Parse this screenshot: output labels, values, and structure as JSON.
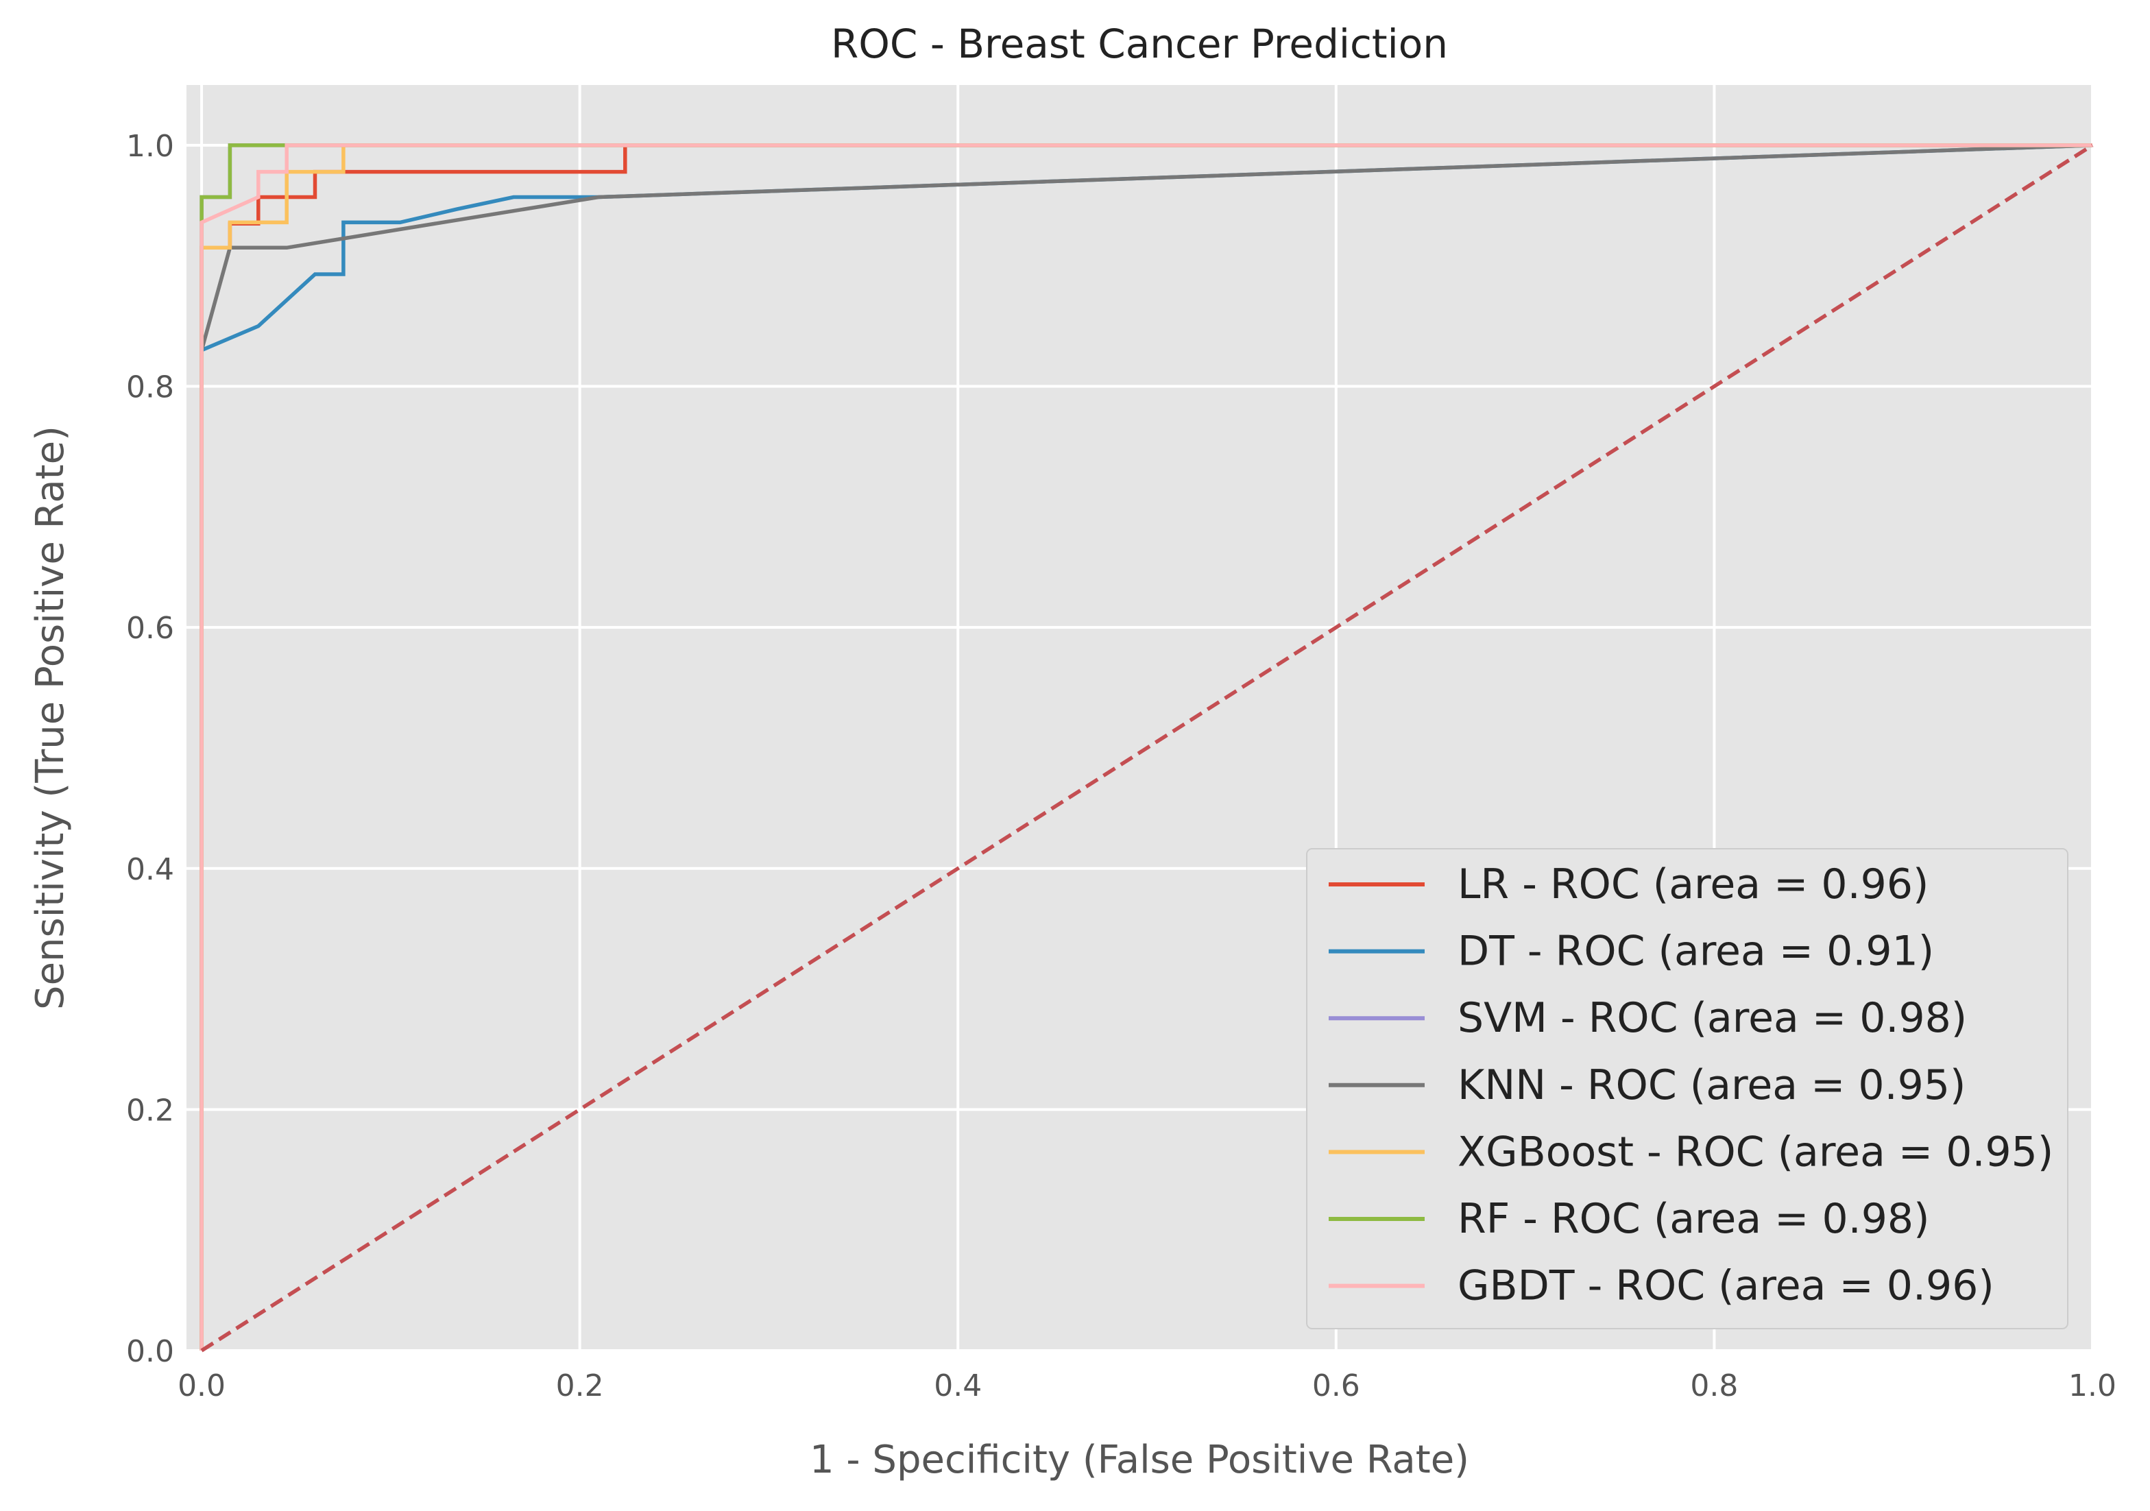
{
  "chart_data": {
    "type": "line",
    "title": "ROC - Breast Cancer Prediction",
    "xlabel": "1 - Specificity (False Positive Rate)",
    "ylabel": "Sensitivity (True Positive Rate)",
    "xlim": [
      -0.008,
      1.0
    ],
    "ylim": [
      0.0,
      1.05
    ],
    "x_ticks": [
      0.0,
      0.2,
      0.4,
      0.6,
      0.8,
      1.0
    ],
    "x_tick_labels": [
      "0.0",
      "0.2",
      "0.4",
      "0.6",
      "0.8",
      "1.0"
    ],
    "y_ticks": [
      0.0,
      0.2,
      0.4,
      0.6,
      0.8,
      1.0
    ],
    "y_tick_labels": [
      "0.0",
      "0.2",
      "0.4",
      "0.6",
      "0.8",
      "1.0"
    ],
    "grid": true,
    "legend_position": "lower-right",
    "colors": {
      "plot_background": "#e5e5e5",
      "grid": "#ffffff",
      "diagonal": "#c44e52"
    },
    "series": [
      {
        "name": "LR - ROC (area = 0.96)",
        "color": "#e24a33",
        "x": [
          0,
          0,
          0.015,
          0.015,
          0.03,
          0.03,
          0.06,
          0.06,
          0.224,
          0.224,
          1.0
        ],
        "y": [
          0,
          0.915,
          0.915,
          0.935,
          0.935,
          0.957,
          0.957,
          0.978,
          0.978,
          1.0,
          1.0
        ]
      },
      {
        "name": "DT - ROC (area = 0.91)",
        "color": "#348abd",
        "x": [
          0,
          0.03,
          0.06,
          0.075,
          0.075,
          0.105,
          0.135,
          0.165,
          0.21,
          1.0
        ],
        "y": [
          0.83,
          0.85,
          0.893,
          0.893,
          0.936,
          0.936,
          0.947,
          0.957,
          0.957,
          1.0
        ]
      },
      {
        "name": "SVM - ROC (area = 0.98)",
        "color": "#988ed5",
        "x": [
          0,
          0,
          0.015,
          0.015,
          1.0
        ],
        "y": [
          0,
          0.957,
          0.957,
          1.0,
          1.0
        ]
      },
      {
        "name": "KNN - ROC (area = 0.95)",
        "color": "#777777",
        "x": [
          0,
          0.015,
          0.045,
          0.21,
          1.0
        ],
        "y": [
          0.83,
          0.915,
          0.915,
          0.957,
          1.0
        ]
      },
      {
        "name": "XGBoost - ROC (area = 0.95)",
        "color": "#fbc15e",
        "x": [
          0,
          0,
          0.015,
          0.015,
          0.045,
          0.045,
          0.075,
          0.075,
          1.0
        ],
        "y": [
          0,
          0.915,
          0.915,
          0.936,
          0.936,
          0.978,
          0.978,
          1.0,
          1.0
        ]
      },
      {
        "name": "RF - ROC (area = 0.98)",
        "color": "#8eba42",
        "x": [
          0,
          0,
          0.015,
          0.015,
          1.0
        ],
        "y": [
          0,
          0.957,
          0.957,
          1.0,
          1.0
        ]
      },
      {
        "name": "GBDT - ROC (area = 0.96)",
        "color": "#ffb5b8",
        "x": [
          0,
          0,
          0.03,
          0.03,
          0.045,
          0.045,
          1.0
        ],
        "y": [
          0,
          0.936,
          0.957,
          0.978,
          0.978,
          1.0,
          1.0
        ]
      }
    ],
    "diagonal": {
      "x": [
        0,
        1.0
      ],
      "y": [
        0,
        1.0
      ],
      "style": "dashed"
    }
  }
}
